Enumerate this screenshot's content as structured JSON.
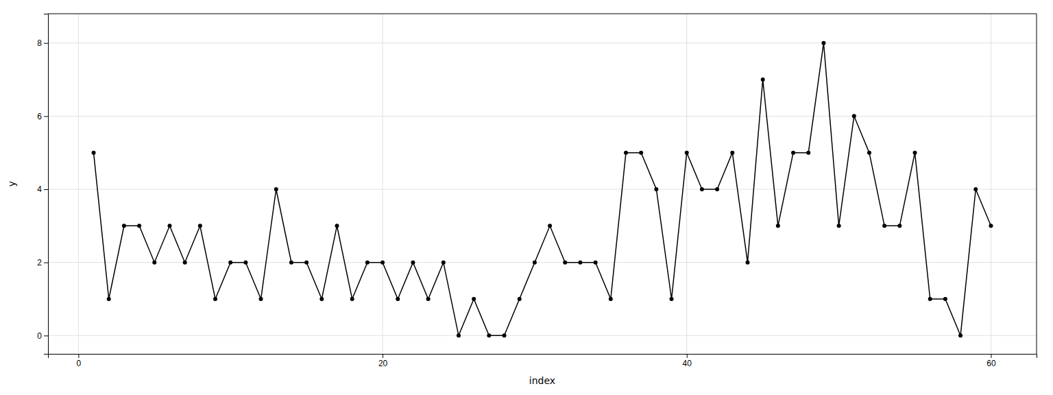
{
  "chart_data": {
    "type": "line",
    "x": [
      1,
      2,
      3,
      4,
      5,
      6,
      7,
      8,
      9,
      10,
      11,
      12,
      13,
      14,
      15,
      16,
      17,
      18,
      19,
      20,
      21,
      22,
      23,
      24,
      25,
      26,
      27,
      28,
      29,
      30,
      31,
      32,
      33,
      34,
      35,
      36,
      37,
      38,
      39,
      40,
      41,
      42,
      43,
      44,
      45,
      46,
      47,
      48,
      49,
      50,
      51,
      52,
      53,
      54,
      55,
      56,
      57,
      58,
      59,
      60
    ],
    "values": [
      5,
      1,
      3,
      3,
      2,
      3,
      2,
      3,
      1,
      2,
      2,
      1,
      4,
      2,
      2,
      1,
      3,
      1,
      2,
      2,
      1,
      2,
      1,
      2,
      0,
      1,
      0,
      0,
      1,
      2,
      3,
      2,
      2,
      2,
      1,
      5,
      5,
      4,
      1,
      5,
      4,
      4,
      5,
      2,
      7,
      3,
      5,
      5,
      8,
      3,
      6,
      5,
      3,
      3,
      5,
      1,
      1,
      0,
      4,
      3
    ],
    "xlabel": "index",
    "ylabel": "y",
    "xlim": [
      -2,
      63
    ],
    "ylim": [
      -0.5,
      8.8
    ],
    "xticks": [
      0,
      20,
      40,
      60
    ],
    "yticks": [
      0,
      2,
      4,
      6,
      8
    ],
    "color": "#000000",
    "marker": "circle",
    "grid": true
  }
}
